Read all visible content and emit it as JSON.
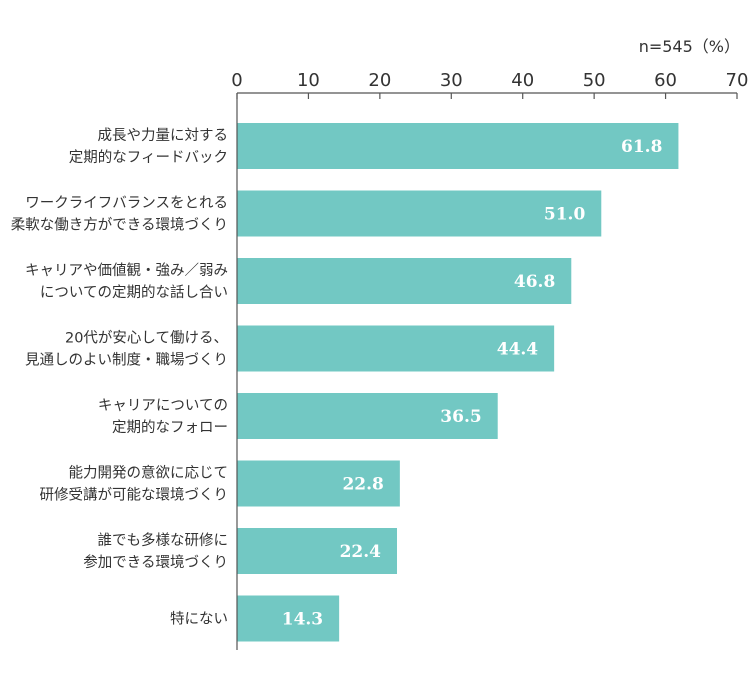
{
  "note": "n=545（%）",
  "colors": {
    "bar": "#72c8c3",
    "axis": "#555555",
    "text": "#333333",
    "value_text": "#ffffff"
  },
  "chart_data": {
    "type": "bar",
    "orientation": "horizontal",
    "categories": [
      [
        "成長や力量に対する",
        "定期的なフィードバック"
      ],
      [
        "ワークライフバランスをとれる",
        "柔軟な働き方ができる環境づくり"
      ],
      [
        "キャリアや価値観・強み／弱み",
        "についての定期的な話し合い"
      ],
      [
        "20代が安心して働ける、",
        "見通しのよい制度・職場づくり"
      ],
      [
        "キャリアについての",
        "定期的なフォロー"
      ],
      [
        "能力開発の意欲に応じて",
        "研修受講が可能な環境づくり"
      ],
      [
        "誰でも多様な研修に",
        "参加できる環境づくり"
      ],
      [
        "特にない"
      ]
    ],
    "values": [
      61.8,
      51.0,
      46.8,
      44.4,
      36.5,
      22.8,
      22.4,
      14.3
    ],
    "value_labels": [
      "61.8",
      "51.0",
      "46.8",
      "44.4",
      "36.5",
      "22.8",
      "22.4",
      "14.3"
    ],
    "xlim": [
      0,
      70
    ],
    "ticks": [
      "0",
      "10",
      "20",
      "30",
      "40",
      "50",
      "60",
      "70"
    ],
    "grid": false
  }
}
